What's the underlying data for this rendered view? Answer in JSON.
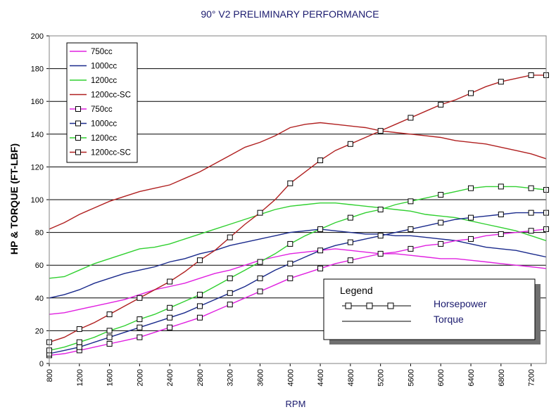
{
  "chart_data": {
    "type": "line",
    "title": "90° V2 PRELIMINARY PERFORMANCE",
    "xlabel": "RPM",
    "ylabel": "HP & TORQUE (FT-LBF)",
    "xlim": [
      800,
      7400
    ],
    "ylim": [
      0,
      200
    ],
    "x_ticks": [
      "800",
      "1200",
      "1600",
      "2000",
      "2400",
      "2800",
      "3200",
      "3600",
      "4000",
      "4400",
      "4800",
      "5200",
      "5600",
      "6000",
      "6400",
      "6800",
      "7200"
    ],
    "y_ticks": [
      "0",
      "20",
      "40",
      "60",
      "80",
      "100",
      "120",
      "140",
      "160",
      "180",
      "200"
    ],
    "grid": "horizontal",
    "legend_position": "top-left",
    "series": [
      {
        "name": "750cc",
        "kind": "torque",
        "color": "#e020e0",
        "x": [
          800,
          1000,
          1200,
          1400,
          1600,
          1800,
          2000,
          2200,
          2400,
          2600,
          2800,
          3000,
          3200,
          3400,
          3600,
          3800,
          4000,
          4200,
          4400,
          4600,
          4800,
          5000,
          5200,
          5400,
          5600,
          5800,
          6000,
          6200,
          6400,
          6600,
          6800,
          7000,
          7200,
          7400
        ],
        "values": [
          30,
          31,
          33,
          35,
          37,
          39,
          42,
          45,
          47,
          49,
          52,
          55,
          57,
          60,
          63,
          65,
          67,
          68,
          69,
          70,
          69,
          68,
          67,
          67,
          66,
          65,
          64,
          64,
          63,
          62,
          61,
          60,
          59,
          58
        ]
      },
      {
        "name": "1000cc",
        "kind": "torque",
        "color": "#1a2a8c",
        "x": [
          800,
          1000,
          1200,
          1400,
          1600,
          1800,
          2000,
          2200,
          2400,
          2600,
          2800,
          3000,
          3200,
          3400,
          3600,
          3800,
          4000,
          4200,
          4400,
          4600,
          4800,
          5000,
          5200,
          5400,
          5600,
          5800,
          6000,
          6200,
          6400,
          6600,
          6800,
          7000,
          7200,
          7400
        ],
        "values": [
          40,
          42,
          45,
          49,
          52,
          55,
          57,
          59,
          62,
          64,
          67,
          69,
          72,
          74,
          76,
          78,
          80,
          81,
          82,
          81,
          80,
          79,
          79,
          78,
          78,
          77,
          76,
          75,
          73,
          71,
          70,
          69,
          67,
          65
        ]
      },
      {
        "name": "1200cc",
        "kind": "torque",
        "color": "#30d030",
        "x": [
          800,
          1000,
          1200,
          1400,
          1600,
          1800,
          2000,
          2200,
          2400,
          2600,
          2800,
          3000,
          3200,
          3400,
          3600,
          3800,
          4000,
          4200,
          4400,
          4600,
          4800,
          5000,
          5200,
          5400,
          5600,
          5800,
          6000,
          6200,
          6400,
          6600,
          6800,
          7000,
          7200,
          7400
        ],
        "values": [
          52,
          53,
          57,
          61,
          64,
          67,
          70,
          71,
          73,
          76,
          79,
          82,
          85,
          88,
          91,
          94,
          96,
          97,
          98,
          98,
          97,
          96,
          95,
          94,
          93,
          91,
          90,
          89,
          87,
          85,
          83,
          81,
          78,
          75
        ]
      },
      {
        "name": "1200cc-SC",
        "kind": "torque",
        "color": "#b02020",
        "x": [
          800,
          1000,
          1200,
          1400,
          1600,
          1800,
          2000,
          2200,
          2400,
          2600,
          2800,
          3000,
          3200,
          3400,
          3600,
          3800,
          4000,
          4200,
          4400,
          4600,
          4800,
          5000,
          5200,
          5400,
          5600,
          5800,
          6000,
          6200,
          6400,
          6600,
          6800,
          7000,
          7200,
          7400
        ],
        "values": [
          82,
          86,
          91,
          95,
          99,
          102,
          105,
          107,
          109,
          113,
          117,
          122,
          127,
          132,
          135,
          139,
          144,
          146,
          147,
          146,
          145,
          144,
          142,
          141,
          140,
          139,
          138,
          136,
          135,
          134,
          132,
          130,
          128,
          125
        ]
      },
      {
        "name": "750cc",
        "kind": "horsepower",
        "color": "#e020e0",
        "x": [
          800,
          1000,
          1200,
          1400,
          1600,
          1800,
          2000,
          2200,
          2400,
          2600,
          2800,
          3000,
          3200,
          3400,
          3600,
          3800,
          4000,
          4200,
          4400,
          4600,
          4800,
          5000,
          5200,
          5400,
          5600,
          5800,
          6000,
          6200,
          6400,
          6600,
          6800,
          7000,
          7200,
          7400
        ],
        "values": [
          5,
          6,
          8,
          10,
          12,
          14,
          16,
          19,
          22,
          25,
          28,
          32,
          36,
          40,
          44,
          48,
          52,
          55,
          58,
          61,
          63,
          65,
          67,
          68,
          70,
          72,
          73,
          75,
          76,
          78,
          79,
          80,
          81,
          82
        ]
      },
      {
        "name": "1000cc",
        "kind": "horsepower",
        "color": "#1a2a8c",
        "x": [
          800,
          1000,
          1200,
          1400,
          1600,
          1800,
          2000,
          2200,
          2400,
          2600,
          2800,
          3000,
          3200,
          3400,
          3600,
          3800,
          4000,
          4200,
          4400,
          4600,
          4800,
          5000,
          5200,
          5400,
          5600,
          5800,
          6000,
          6200,
          6400,
          6600,
          6800,
          7000,
          7200,
          7400
        ],
        "values": [
          6,
          8,
          10,
          13,
          16,
          19,
          22,
          25,
          28,
          31,
          35,
          39,
          43,
          47,
          52,
          57,
          61,
          65,
          69,
          72,
          74,
          76,
          78,
          80,
          82,
          84,
          86,
          88,
          89,
          90,
          91,
          92,
          92,
          92
        ]
      },
      {
        "name": "1200cc",
        "kind": "horsepower",
        "color": "#30d030",
        "x": [
          800,
          1000,
          1200,
          1400,
          1600,
          1800,
          2000,
          2200,
          2400,
          2600,
          2800,
          3000,
          3200,
          3400,
          3600,
          3800,
          4000,
          4200,
          4400,
          4600,
          4800,
          5000,
          5200,
          5400,
          5600,
          5800,
          6000,
          6200,
          6400,
          6600,
          6800,
          7000,
          7200,
          7400
        ],
        "values": [
          8,
          10,
          13,
          16,
          20,
          23,
          27,
          30,
          34,
          38,
          42,
          47,
          52,
          57,
          62,
          67,
          73,
          78,
          82,
          86,
          89,
          92,
          94,
          97,
          99,
          101,
          103,
          105,
          107,
          108,
          108,
          108,
          107,
          106
        ]
      },
      {
        "name": "1200cc-SC",
        "kind": "horsepower",
        "color": "#b02020",
        "x": [
          800,
          1000,
          1200,
          1400,
          1600,
          1800,
          2000,
          2200,
          2400,
          2600,
          2800,
          3000,
          3200,
          3400,
          3600,
          3800,
          4000,
          4200,
          4400,
          4600,
          4800,
          5000,
          5200,
          5400,
          5600,
          5800,
          6000,
          6200,
          6400,
          6600,
          6800,
          7000,
          7200,
          7400
        ],
        "values": [
          13,
          16,
          21,
          25,
          30,
          35,
          40,
          45,
          50,
          56,
          63,
          69,
          77,
          85,
          92,
          100,
          110,
          117,
          124,
          130,
          134,
          138,
          142,
          146,
          150,
          154,
          158,
          161,
          165,
          169,
          172,
          174,
          176,
          176
        ]
      }
    ],
    "key": {
      "title": "Legend",
      "horsepower_label": "Horsepower",
      "torque_label": "Torque"
    }
  }
}
